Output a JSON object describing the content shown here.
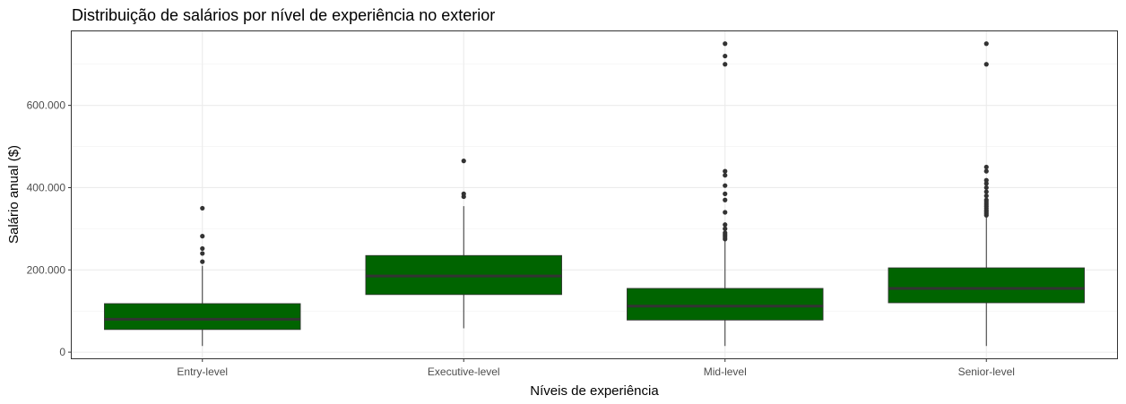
{
  "chart_data": {
    "type": "boxplot",
    "title": "Distribuição de salários por nível de experiência no exterior",
    "xlabel": "Níveis de experiência",
    "ylabel": "Salário anual ($)",
    "ylim": [
      -15000,
      780000
    ],
    "yticks": [
      0,
      200000,
      400000,
      600000
    ],
    "ytick_labels": [
      "0",
      "200.000",
      "400.000",
      "600.000"
    ],
    "grid": true,
    "fill_color": "#006400",
    "line_color": "#333333",
    "categories": [
      "Entry-level",
      "Executive-level",
      "Mid-level",
      "Senior-level"
    ],
    "boxes": [
      {
        "category": "Entry-level",
        "whisker_low": 15000,
        "q1": 55000,
        "median": 80000,
        "q3": 118000,
        "whisker_high": 210000,
        "outliers": [
          220000,
          240000,
          252000,
          282000,
          350000
        ]
      },
      {
        "category": "Executive-level",
        "whisker_low": 58000,
        "q1": 140000,
        "median": 185000,
        "q3": 235000,
        "whisker_high": 355000,
        "outliers": [
          378000,
          385000,
          465000
        ]
      },
      {
        "category": "Mid-level",
        "whisker_low": 15000,
        "q1": 78000,
        "median": 112000,
        "q3": 155000,
        "whisker_high": 270000,
        "outliers": [
          275000,
          280000,
          285000,
          290000,
          300000,
          310000,
          340000,
          370000,
          385000,
          405000,
          430000,
          440000,
          700000,
          720000,
          750000
        ]
      },
      {
        "category": "Senior-level",
        "whisker_low": 15000,
        "q1": 120000,
        "median": 155000,
        "q3": 205000,
        "whisker_high": 330000,
        "outliers": [
          333000,
          337000,
          341000,
          345000,
          350000,
          355000,
          360000,
          365000,
          370000,
          380000,
          390000,
          400000,
          410000,
          418000,
          440000,
          450000,
          700000,
          750000
        ]
      }
    ]
  }
}
